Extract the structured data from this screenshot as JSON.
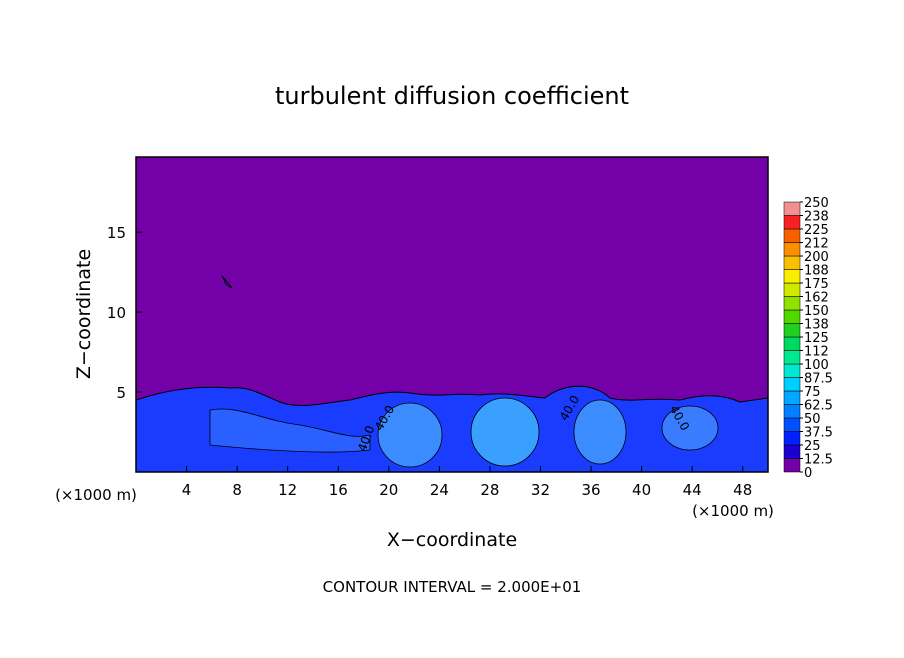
{
  "chart_data": {
    "type": "contour",
    "title": "turbulent diffusion coefficient",
    "x_label": "X−coordinate",
    "y_label": "Z−coordinate",
    "x_unit_left": "(×1000 m)",
    "x_unit_right": "(×1000 m)",
    "footer": "CONTOUR INTERVAL = 2.000E+01",
    "xlim": [
      0,
      50
    ],
    "xticks": [
      4,
      8,
      12,
      16,
      20,
      24,
      28,
      32,
      36,
      40,
      44,
      48
    ],
    "ylim": [
      0,
      19.7
    ],
    "yticks": [
      5,
      10,
      15
    ],
    "colorbar": {
      "ticks": [
        0,
        12.5,
        25,
        37.5,
        50,
        62.5,
        75,
        87.5,
        100,
        {
          "value": 112.5,
          "label": "112"
        },
        125,
        {
          "value": 137.5,
          "label": "138"
        },
        150,
        {
          "value": 162.5,
          "label": "162"
        },
        175,
        {
          "value": 187.5,
          "label": "188"
        },
        200,
        {
          "value": 212.5,
          "label": "212"
        },
        225,
        {
          "value": 237.5,
          "label": "238"
        },
        250
      ],
      "colors": [
        "#7400a8",
        "#1c00d0",
        "#0020ff",
        "#0050ff",
        "#0080ff",
        "#00a8ff",
        "#00d0ff",
        "#00e8d0",
        "#00e890",
        "#00d860",
        "#20d020",
        "#50d800",
        "#90e000",
        "#d0e800",
        "#f8f000",
        "#f8c000",
        "#f89000",
        "#f86000",
        "#f82020",
        "#f09090"
      ]
    },
    "contour_labels": [
      "40.0",
      "40.0",
      "40.0",
      "40.0"
    ]
  }
}
